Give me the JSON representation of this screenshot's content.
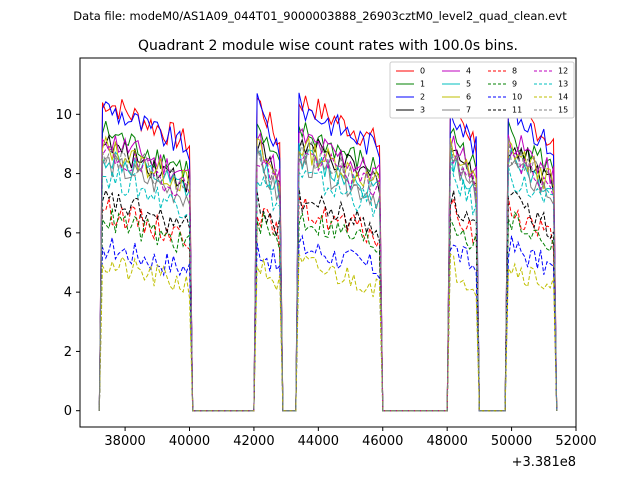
{
  "figure": {
    "suptitle": "Data file: modeM0/AS1A09_044T01_9000003888_26903cztM0_level2_quad_clean.evt"
  },
  "chart_data": {
    "type": "line",
    "title": "Quadrant 2 module wise count rates with 100.0s bins.",
    "xlabel": "",
    "ylabel": "",
    "x_offset_label": "+3.381e8",
    "xlim": [
      36600,
      52000
    ],
    "ylim": [
      -0.55,
      11.9
    ],
    "xticks": [
      38000,
      40000,
      42000,
      44000,
      46000,
      48000,
      50000,
      52000
    ],
    "xtick_labels": [
      "38000",
      "40000",
      "42000",
      "44000",
      "46000",
      "48000",
      "50000",
      "52000"
    ],
    "yticks": [
      0,
      2,
      4,
      6,
      8,
      10
    ],
    "ytick_labels": [
      "0",
      "2",
      "4",
      "6",
      "8",
      "10"
    ],
    "grid": false,
    "legend_position": "top-right",
    "bin_seconds": 100,
    "active_intervals": [
      [
        37300,
        40000
      ],
      [
        42100,
        42800
      ],
      [
        43400,
        45900
      ],
      [
        48100,
        48900
      ],
      [
        49900,
        51300
      ]
    ],
    "zero_intervals": [
      [
        40200,
        42000
      ],
      [
        42900,
        43300
      ],
      [
        46000,
        48000
      ],
      [
        49000,
        49800
      ]
    ],
    "series": [
      {
        "name": "0",
        "color": "#ff0000",
        "style": "solid",
        "level": 10.0
      },
      {
        "name": "1",
        "color": "#008000",
        "style": "solid",
        "level": 9.0
      },
      {
        "name": "2",
        "color": "#0000ff",
        "style": "solid",
        "level": 9.8
      },
      {
        "name": "3",
        "color": "#000000",
        "style": "solid",
        "level": 8.6
      },
      {
        "name": "4",
        "color": "#bf00bf",
        "style": "solid",
        "level": 8.8
      },
      {
        "name": "5",
        "color": "#00bfbf",
        "style": "solid",
        "level": 8.2
      },
      {
        "name": "6",
        "color": "#bfbf00",
        "style": "solid",
        "level": 8.5
      },
      {
        "name": "7",
        "color": "#808080",
        "style": "solid",
        "level": 8.0
      },
      {
        "name": "8",
        "color": "#ff0000",
        "style": "dashed",
        "level": 6.5
      },
      {
        "name": "9",
        "color": "#008000",
        "style": "dashed",
        "level": 6.2
      },
      {
        "name": "10",
        "color": "#0000ff",
        "style": "dashed",
        "level": 5.3
      },
      {
        "name": "11",
        "color": "#000000",
        "style": "dashed",
        "level": 6.8
      },
      {
        "name": "12",
        "color": "#bf00bf",
        "style": "dashed",
        "level": 8.3
      },
      {
        "name": "13",
        "color": "#00bfbf",
        "style": "dashed",
        "level": 7.6
      },
      {
        "name": "14",
        "color": "#bfbf00",
        "style": "dashed",
        "level": 4.7
      },
      {
        "name": "15",
        "color": "#808080",
        "style": "dashed",
        "level": 8.4
      }
    ]
  }
}
